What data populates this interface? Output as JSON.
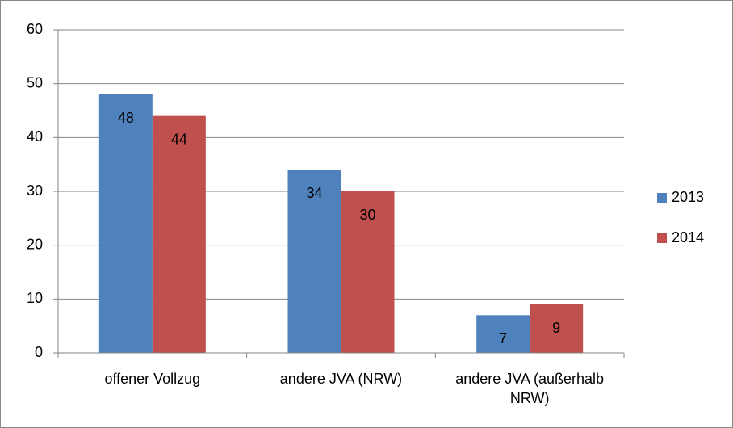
{
  "chart_data": {
    "type": "bar",
    "categories": [
      "offener Vollzug",
      "andere JVA (NRW)",
      "andere JVA (außerhalb NRW)"
    ],
    "series": [
      {
        "name": "2013",
        "color": "#4f81bd",
        "values": [
          48,
          34,
          7
        ]
      },
      {
        "name": "2014",
        "color": "#c0504d",
        "values": [
          44,
          30,
          9
        ]
      }
    ],
    "ylim": [
      0,
      60
    ],
    "yticks": [
      0,
      10,
      20,
      30,
      40,
      50,
      60
    ],
    "grid": true,
    "legend": "right"
  }
}
